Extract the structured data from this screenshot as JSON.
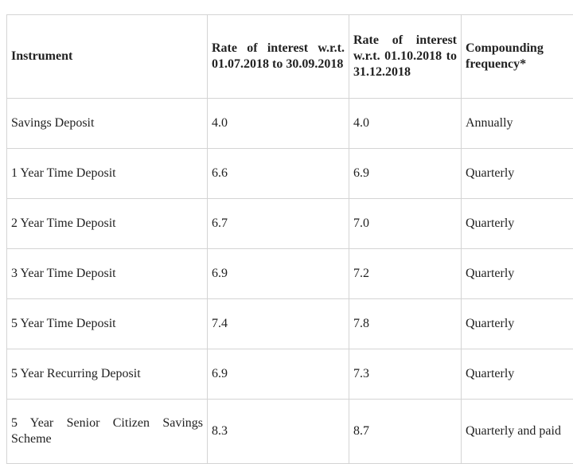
{
  "table": {
    "header": [
      "Instrument",
      "Rate of interest w.r.t. 01.07.2018 to 30.09.2018",
      "Rate of interest w.r.t. 01.10.2018 to 31.12.2018",
      "Compounding frequency*"
    ],
    "rows": [
      [
        "Savings Deposit",
        "4.0",
        "4.0",
        "Annually"
      ],
      [
        "1 Year Time Deposit",
        "6.6",
        "6.9",
        "Quarterly"
      ],
      [
        "2 Year Time Deposit",
        "6.7",
        "7.0",
        "Quarterly"
      ],
      [
        "3 Year Time Deposit",
        "6.9",
        "7.2",
        "Quarterly"
      ],
      [
        "5 Year Time Deposit",
        "7.4",
        "7.8",
        "Quarterly"
      ],
      [
        "5 Year Recurring Deposit",
        "6.9",
        "7.3",
        "Quarterly"
      ],
      [
        "5 Year Senior Citizen Savings Scheme",
        "8.3",
        "8.7",
        "Quarterly and paid"
      ]
    ]
  }
}
